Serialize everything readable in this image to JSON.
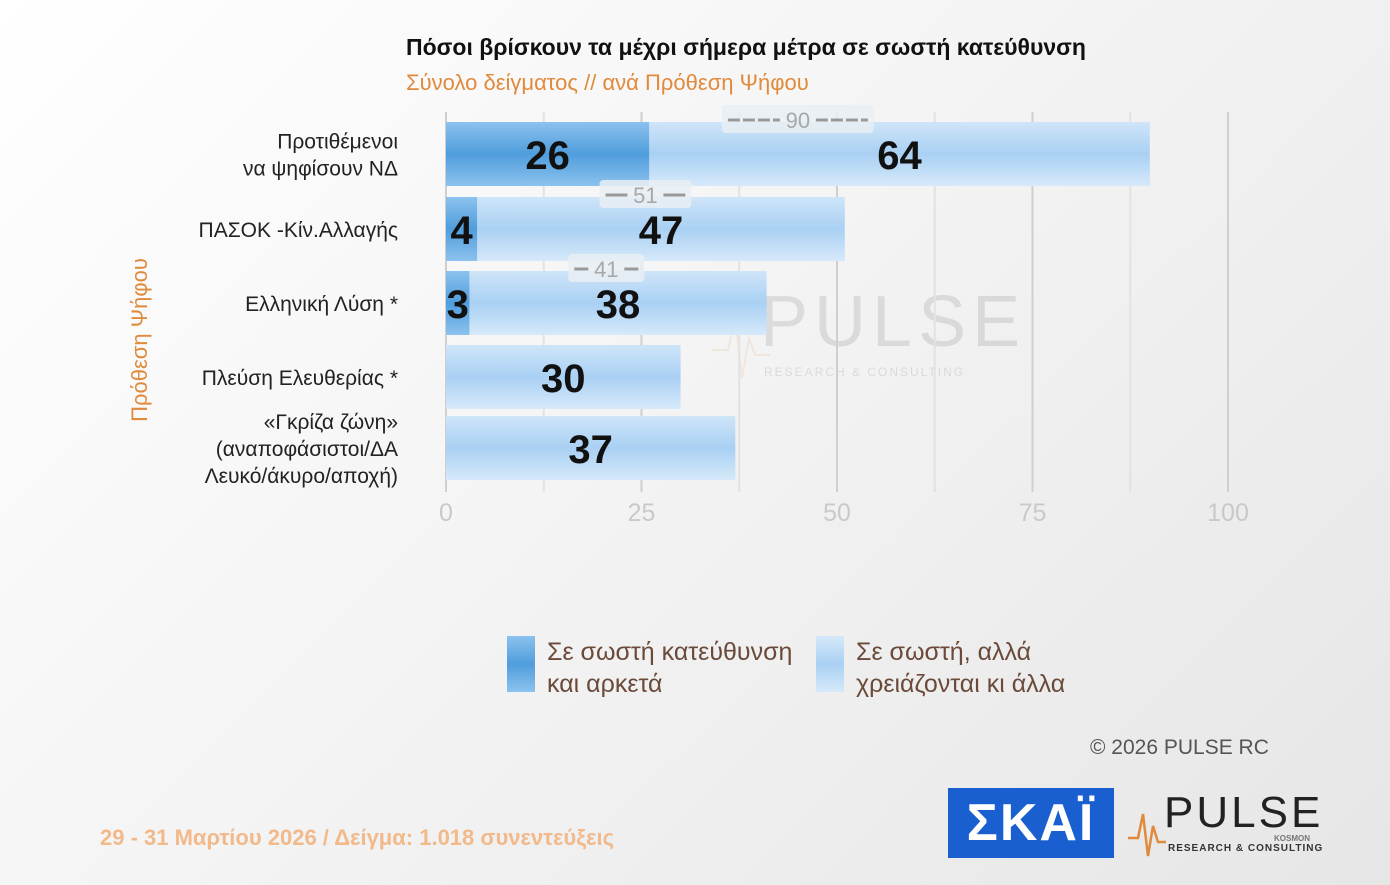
{
  "title": "Πόσοι βρίσκουν τα μέχρι σήμερα μέτρα σε σωστή κατεύθυνση",
  "subtitle": "Σύνολο δείγματος // ανά Πρόθεση  Ψήφου",
  "yaxis_title": "Πρόθεση  Ψήφου",
  "watermark": {
    "brand": "PULSE",
    "tagline": "RESEARCH & CONSULTING"
  },
  "chart_data": {
    "type": "bar",
    "orientation": "horizontal",
    "stacked": true,
    "categories": [
      [
        "Προτιθέμενοι",
        "να ψηφίσουν ΝΔ"
      ],
      [
        "ΠΑΣΟΚ -Κίν.Αλλαγής"
      ],
      [
        "Ελληνική Λύση *"
      ],
      [
        "Πλεύση Ελευθερίας *"
      ],
      [
        "«Γκρίζα ζώνη»",
        "(αναποφάσιστοι/ΔΑ",
        "Λευκό/άκυρο/αποχή)"
      ]
    ],
    "series": [
      {
        "name": "Σε σωστή κατεύθυνση και αρκετά",
        "values": [
          26,
          4,
          3,
          null,
          null
        ],
        "color": "#5aa5e0"
      },
      {
        "name": "Σε σωστή, αλλά χρειάζονται κι άλλα",
        "values": [
          64,
          47,
          38,
          30,
          37
        ],
        "color": "#bcdaf5"
      }
    ],
    "totals": [
      90,
      51,
      41,
      null,
      null
    ],
    "xlim": [
      0,
      100
    ],
    "xticks": [
      0,
      25,
      50,
      75,
      100
    ],
    "legend": "bottom",
    "grid": true
  },
  "legend": [
    {
      "line1": "Σε σωστή κατεύθυνση",
      "line2": "και αρκετά"
    },
    {
      "line1": "Σε σωστή, αλλά",
      "line2": "χρειάζονται κι άλλα"
    }
  ],
  "copyright": "©  2026  PULSE RC",
  "footer": "29 - 31  Μαρτίου 2026  /  Δείγμα:  1.018 συνεντεύξεις",
  "logos": {
    "skai": "ΣΚΑΪ",
    "pulse": "PULSE",
    "pulse_sub": "RESEARCH & CONSULTING",
    "pulse_kosmon": "KOSMON"
  }
}
